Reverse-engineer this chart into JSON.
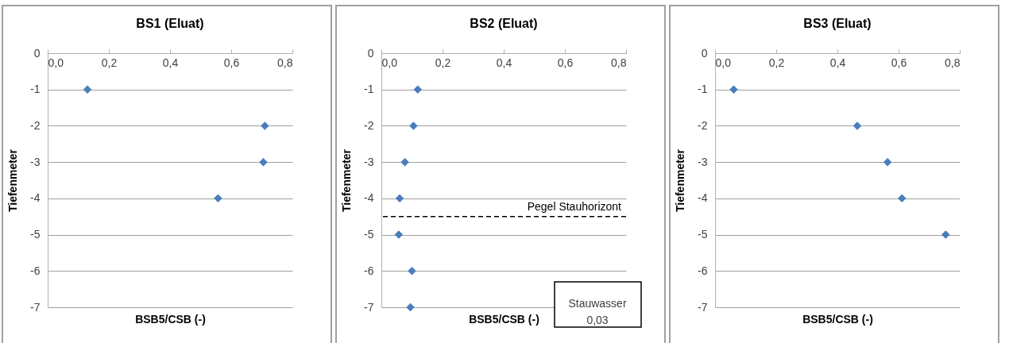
{
  "chart_data": [
    {
      "type": "scatter",
      "title": "BS1 (Eluat)",
      "xlabel": "BSB5/CSB (-)",
      "ylabel": "Tiefenmeter",
      "x": [
        0.13,
        0.71,
        0.705,
        0.557
      ],
      "values": [
        -1,
        -2,
        -3,
        -4
      ],
      "color": "#4a7ebb",
      "marker": "diamond",
      "xlim": [
        0,
        0.8
      ],
      "xticks": [
        {
          "value": 0,
          "label": "0,0"
        },
        {
          "value": 0.2,
          "label": "0,2"
        },
        {
          "value": 0.4,
          "label": "0,4"
        },
        {
          "value": 0.6,
          "label": "0,6"
        },
        {
          "value": 0.8,
          "label": "0,8"
        }
      ],
      "ylim": [
        -7,
        0
      ],
      "yticks": [
        0,
        -1,
        -2,
        -3,
        -4,
        -5,
        -6,
        -7
      ],
      "grid": "y"
    },
    {
      "type": "scatter",
      "title": "BS2 (Eluat)",
      "xlabel": "BSB5/CSB (-)",
      "ylabel": "Tiefenmeter",
      "x": [
        0.119,
        0.105,
        0.077,
        0.06,
        0.057,
        0.1,
        0.095
      ],
      "values": [
        -1,
        -2,
        -3,
        -4,
        -5,
        -6,
        -7
      ],
      "color": "#4a7ebb",
      "marker": "diamond",
      "xlim": [
        0,
        0.8
      ],
      "xticks": [
        {
          "value": 0,
          "label": "0,0"
        },
        {
          "value": 0.2,
          "label": "0,2"
        },
        {
          "value": 0.4,
          "label": "0,4"
        },
        {
          "value": 0.6,
          "label": "0,6"
        },
        {
          "value": 0.8,
          "label": "0,8"
        }
      ],
      "ylim": [
        -7,
        0
      ],
      "yticks": [
        0,
        -1,
        -2,
        -3,
        -4,
        -5,
        -6,
        -7
      ],
      "grid": "y",
      "ref_lines": [
        {
          "axis": "y",
          "value": -4.5,
          "label": "Pegel Stauhorizont",
          "color": "#000000",
          "line_style": "dashed"
        }
      ],
      "annotations": [
        "Stauwasser\n0,03"
      ]
    },
    {
      "type": "scatter",
      "title": "BS3 (Eluat)",
      "xlabel": "BSB5/CSB (-)",
      "ylabel": "Tiefenmeter",
      "x": [
        0.061,
        0.465,
        0.564,
        0.611,
        0.754
      ],
      "values": [
        -1,
        -2,
        -3,
        -4,
        -5
      ],
      "color": "#4a7ebb",
      "marker": "diamond",
      "xlim": [
        0,
        0.8
      ],
      "xticks": [
        {
          "value": 0,
          "label": "0,0"
        },
        {
          "value": 0.2,
          "label": "0,2"
        },
        {
          "value": 0.4,
          "label": "0,4"
        },
        {
          "value": 0.6,
          "label": "0,6"
        },
        {
          "value": 0.8,
          "label": "0,8"
        }
      ],
      "ylim": [
        -7,
        0
      ],
      "yticks": [
        0,
        -1,
        -2,
        -3,
        -4,
        -5,
        -6,
        -7
      ],
      "grid": "y"
    }
  ]
}
